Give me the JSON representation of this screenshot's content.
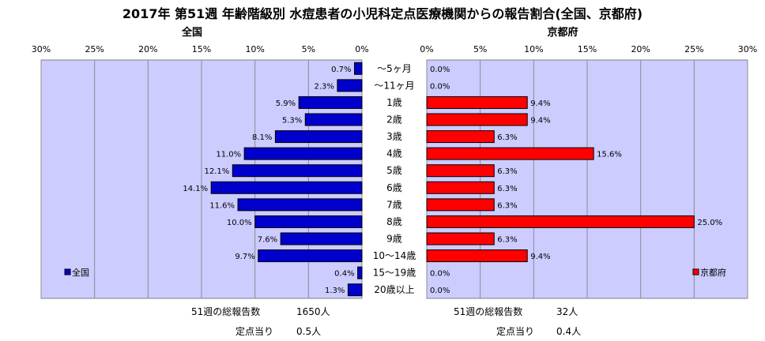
{
  "title": "2017年 第51週 年齢階級別 水痘患者の小児科定点医療機関からの報告割合(全国、京都府)",
  "chart_data": {
    "type": "bar",
    "categories": [
      "〜5ヶ月",
      "〜11ヶ月",
      "1歳",
      "2歳",
      "3歳",
      "4歳",
      "5歳",
      "6歳",
      "7歳",
      "8歳",
      "9歳",
      "10〜14歳",
      "15〜19歳",
      "20歳以上"
    ],
    "xlim": [
      0,
      30
    ],
    "x_ticks": [
      "0%",
      "5%",
      "10%",
      "15%",
      "20%",
      "25%",
      "30%"
    ],
    "grid": true,
    "series": [
      {
        "name": "全国",
        "panel_label": "全国",
        "color": "#0000cc",
        "orientation": "reversed",
        "legend_position": "bottom-left",
        "values": [
          0.7,
          2.3,
          5.9,
          5.3,
          8.1,
          11.0,
          12.1,
          14.1,
          11.6,
          10.0,
          7.6,
          9.7,
          0.4,
          1.3
        ],
        "labels": [
          "0.7%",
          "2.3%",
          "5.9%",
          "5.3%",
          "8.1%",
          "11.0%",
          "12.1%",
          "14.1%",
          "11.6%",
          "10.0%",
          "7.6%",
          "9.7%",
          "0.4%",
          "1.3%"
        ]
      },
      {
        "name": "京都府",
        "panel_label": "京都府",
        "color": "#ff0000",
        "orientation": "normal",
        "legend_position": "bottom-right",
        "values": [
          0.0,
          0.0,
          9.4,
          9.4,
          6.3,
          15.6,
          6.3,
          6.3,
          6.3,
          25.0,
          6.3,
          9.4,
          0.0,
          0.0
        ],
        "labels": [
          "0.0%",
          "0.0%",
          "9.4%",
          "9.4%",
          "6.3%",
          "15.6%",
          "6.3%",
          "6.3%",
          "6.3%",
          "25.0%",
          "6.3%",
          "9.4%",
          "0.0%",
          "0.0%"
        ]
      }
    ]
  },
  "footer": {
    "national": {
      "total_label": "51週の総報告数",
      "total_value": "1650人",
      "per_label": "定点当り",
      "per_value": "0.5人"
    },
    "kyoto": {
      "total_label": "51週の総報告数",
      "total_value": "32人",
      "per_label": "定点当り",
      "per_value": "0.4人"
    }
  }
}
